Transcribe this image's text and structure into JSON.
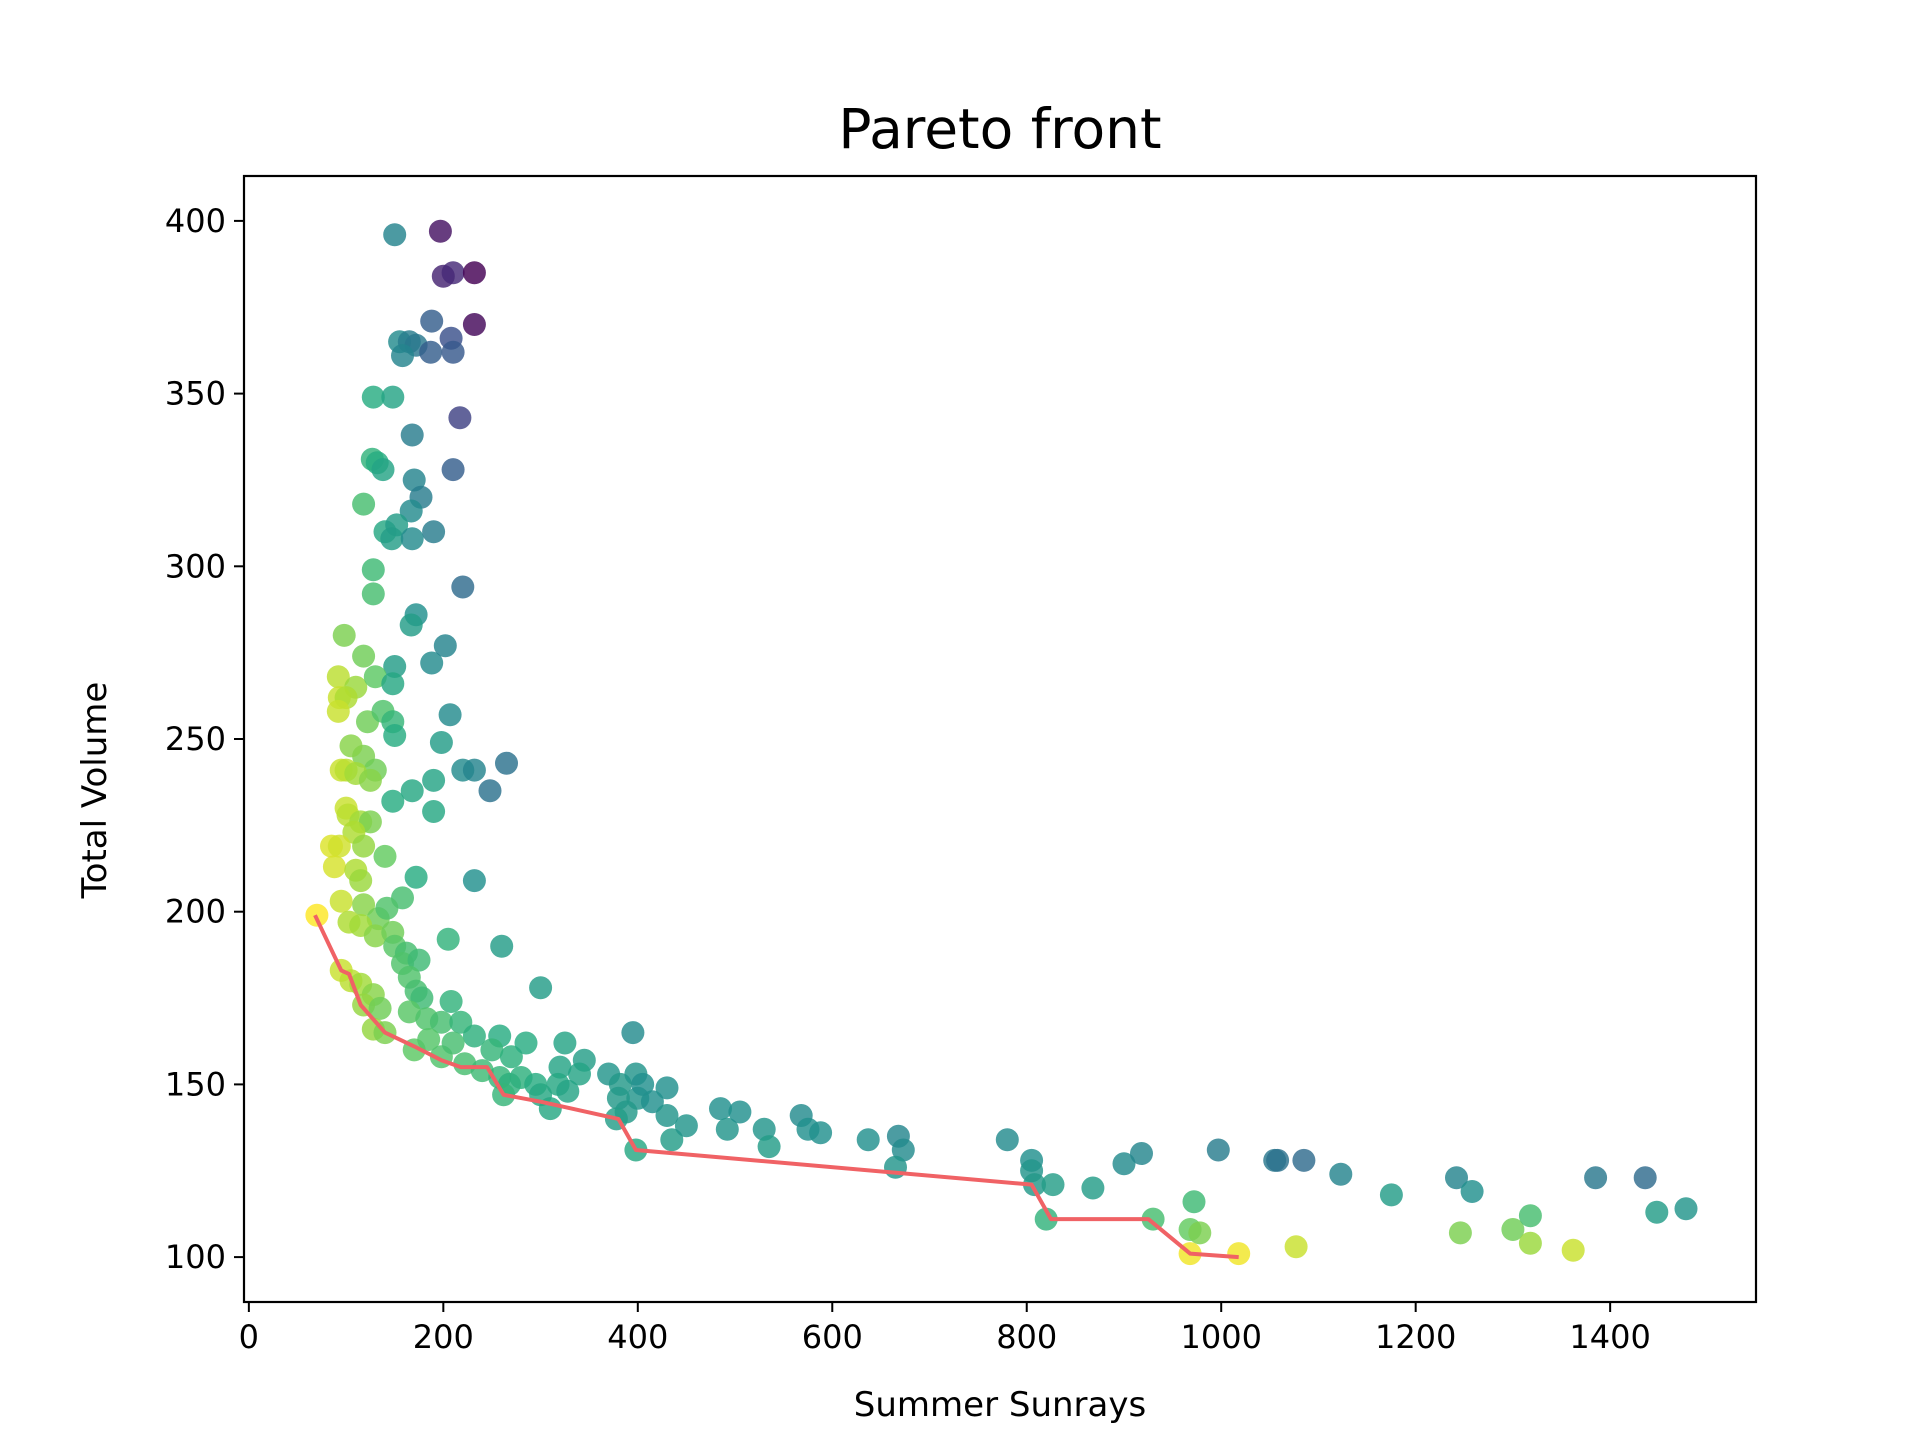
{
  "chart_data": {
    "type": "scatter",
    "title": "Pareto front",
    "xlabel": "Summer Sunrays",
    "ylabel": "Total Volume",
    "xlim": [
      -5,
      1550
    ],
    "ylim": [
      87,
      413
    ],
    "xticks": [
      0,
      200,
      400,
      600,
      800,
      1000,
      1200,
      1400
    ],
    "yticks": [
      100,
      150,
      200,
      250,
      300,
      350,
      400
    ],
    "grid": false,
    "legend": "none",
    "colormap": "viridis",
    "colors": {
      "frontier": "#f06265",
      "axes": "#000000"
    },
    "points": [
      [
        197,
        397,
        0.05
      ],
      [
        150,
        396,
        0.45
      ],
      [
        200,
        384,
        0.1
      ],
      [
        210,
        385,
        0.12
      ],
      [
        232,
        385,
        0.0
      ],
      [
        232,
        370,
        0.02
      ],
      [
        188,
        371,
        0.3
      ],
      [
        208,
        366,
        0.25
      ],
      [
        155,
        365,
        0.48
      ],
      [
        165,
        365,
        0.42
      ],
      [
        172,
        364,
        0.4
      ],
      [
        158,
        361,
        0.45
      ],
      [
        187,
        362,
        0.3
      ],
      [
        210,
        362,
        0.28
      ],
      [
        128,
        349,
        0.62
      ],
      [
        148,
        349,
        0.58
      ],
      [
        217,
        343,
        0.2
      ],
      [
        168,
        338,
        0.42
      ],
      [
        210,
        328,
        0.3
      ],
      [
        127,
        331,
        0.65
      ],
      [
        132,
        330,
        0.62
      ],
      [
        138,
        328,
        0.58
      ],
      [
        170,
        325,
        0.45
      ],
      [
        177,
        320,
        0.42
      ],
      [
        167,
        316,
        0.48
      ],
      [
        118,
        318,
        0.7
      ],
      [
        140,
        310,
        0.6
      ],
      [
        147,
        308,
        0.56
      ],
      [
        152,
        312,
        0.55
      ],
      [
        168,
        308,
        0.48
      ],
      [
        190,
        310,
        0.42
      ],
      [
        128,
        299,
        0.68
      ],
      [
        128,
        292,
        0.7
      ],
      [
        220,
        294,
        0.35
      ],
      [
        172,
        286,
        0.5
      ],
      [
        167,
        283,
        0.55
      ],
      [
        98,
        280,
        0.8
      ],
      [
        118,
        274,
        0.78
      ],
      [
        150,
        271,
        0.55
      ],
      [
        188,
        272,
        0.48
      ],
      [
        202,
        277,
        0.45
      ],
      [
        92,
        268,
        0.9
      ],
      [
        110,
        265,
        0.85
      ],
      [
        130,
        268,
        0.75
      ],
      [
        148,
        266,
        0.6
      ],
      [
        93,
        262,
        0.92
      ],
      [
        100,
        262,
        0.88
      ],
      [
        122,
        255,
        0.78
      ],
      [
        138,
        258,
        0.72
      ],
      [
        148,
        255,
        0.66
      ],
      [
        150,
        251,
        0.62
      ],
      [
        207,
        257,
        0.48
      ],
      [
        92,
        258,
        0.92
      ],
      [
        118,
        245,
        0.8
      ],
      [
        105,
        248,
        0.82
      ],
      [
        130,
        241,
        0.78
      ],
      [
        198,
        249,
        0.55
      ],
      [
        220,
        241,
        0.48
      ],
      [
        232,
        241,
        0.45
      ],
      [
        265,
        243,
        0.38
      ],
      [
        248,
        235,
        0.38
      ],
      [
        95,
        241,
        0.92
      ],
      [
        100,
        241,
        0.9
      ],
      [
        110,
        240,
        0.86
      ],
      [
        125,
        238,
        0.82
      ],
      [
        148,
        232,
        0.62
      ],
      [
        168,
        235,
        0.6
      ],
      [
        190,
        238,
        0.58
      ],
      [
        190,
        229,
        0.6
      ],
      [
        100,
        230,
        0.92
      ],
      [
        102,
        228,
        0.9
      ],
      [
        115,
        226,
        0.86
      ],
      [
        125,
        226,
        0.8
      ],
      [
        108,
        223,
        0.88
      ],
      [
        85,
        219,
        0.95
      ],
      [
        93,
        219,
        0.93
      ],
      [
        118,
        219,
        0.84
      ],
      [
        88,
        213,
        0.94
      ],
      [
        110,
        212,
        0.88
      ],
      [
        115,
        209,
        0.85
      ],
      [
        140,
        216,
        0.76
      ],
      [
        172,
        210,
        0.62
      ],
      [
        232,
        209,
        0.5
      ],
      [
        95,
        203,
        0.92
      ],
      [
        118,
        202,
        0.82
      ],
      [
        133,
        198,
        0.78
      ],
      [
        158,
        204,
        0.7
      ],
      [
        142,
        201,
        0.72
      ],
      [
        70,
        199,
        1.0
      ],
      [
        103,
        197,
        0.88
      ],
      [
        115,
        196,
        0.86
      ],
      [
        130,
        193,
        0.82
      ],
      [
        148,
        194,
        0.78
      ],
      [
        205,
        192,
        0.65
      ],
      [
        150,
        190,
        0.74
      ],
      [
        162,
        188,
        0.7
      ],
      [
        158,
        185,
        0.72
      ],
      [
        175,
        186,
        0.68
      ],
      [
        260,
        190,
        0.55
      ],
      [
        95,
        183,
        0.92
      ],
      [
        105,
        180,
        0.9
      ],
      [
        115,
        179,
        0.86
      ],
      [
        165,
        181,
        0.72
      ],
      [
        172,
        177,
        0.7
      ],
      [
        178,
        175,
        0.68
      ],
      [
        128,
        176,
        0.82
      ],
      [
        118,
        173,
        0.84
      ],
      [
        135,
        172,
        0.78
      ],
      [
        300,
        178,
        0.55
      ],
      [
        208,
        174,
        0.65
      ],
      [
        165,
        171,
        0.74
      ],
      [
        183,
        169,
        0.72
      ],
      [
        198,
        168,
        0.7
      ],
      [
        218,
        168,
        0.66
      ],
      [
        232,
        164,
        0.64
      ],
      [
        258,
        164,
        0.62
      ],
      [
        128,
        166,
        0.84
      ],
      [
        140,
        165,
        0.8
      ],
      [
        170,
        160,
        0.75
      ],
      [
        185,
        163,
        0.73
      ],
      [
        198,
        158,
        0.72
      ],
      [
        210,
        162,
        0.7
      ],
      [
        250,
        160,
        0.66
      ],
      [
        270,
        158,
        0.64
      ],
      [
        285,
        162,
        0.62
      ],
      [
        222,
        156,
        0.7
      ],
      [
        240,
        154,
        0.68
      ],
      [
        258,
        152,
        0.66
      ],
      [
        268,
        150,
        0.64
      ],
      [
        280,
        152,
        0.64
      ],
      [
        295,
        150,
        0.62
      ],
      [
        262,
        147,
        0.66
      ],
      [
        300,
        147,
        0.6
      ],
      [
        325,
        162,
        0.58
      ],
      [
        320,
        155,
        0.58
      ],
      [
        345,
        157,
        0.56
      ],
      [
        340,
        153,
        0.58
      ],
      [
        310,
        143,
        0.6
      ],
      [
        318,
        150,
        0.6
      ],
      [
        328,
        148,
        0.58
      ],
      [
        370,
        153,
        0.52
      ],
      [
        382,
        150,
        0.54
      ],
      [
        398,
        153,
        0.52
      ],
      [
        400,
        146,
        0.52
      ],
      [
        395,
        165,
        0.48
      ],
      [
        380,
        146,
        0.54
      ],
      [
        388,
        142,
        0.54
      ],
      [
        405,
        150,
        0.5
      ],
      [
        415,
        145,
        0.5
      ],
      [
        430,
        149,
        0.5
      ],
      [
        378,
        140,
        0.56
      ],
      [
        430,
        141,
        0.52
      ],
      [
        435,
        134,
        0.55
      ],
      [
        398,
        131,
        0.6
      ],
      [
        450,
        138,
        0.52
      ],
      [
        485,
        143,
        0.5
      ],
      [
        492,
        137,
        0.52
      ],
      [
        505,
        142,
        0.5
      ],
      [
        530,
        137,
        0.52
      ],
      [
        535,
        132,
        0.55
      ],
      [
        568,
        141,
        0.48
      ],
      [
        575,
        137,
        0.5
      ],
      [
        588,
        136,
        0.5
      ],
      [
        637,
        134,
        0.5
      ],
      [
        668,
        135,
        0.46
      ],
      [
        673,
        131,
        0.48
      ],
      [
        665,
        126,
        0.52
      ],
      [
        780,
        134,
        0.48
      ],
      [
        805,
        128,
        0.5
      ],
      [
        805,
        125,
        0.52
      ],
      [
        808,
        121,
        0.54
      ],
      [
        827,
        121,
        0.56
      ],
      [
        820,
        111,
        0.65
      ],
      [
        868,
        120,
        0.55
      ],
      [
        900,
        127,
        0.48
      ],
      [
        918,
        130,
        0.46
      ],
      [
        930,
        111,
        0.7
      ],
      [
        972,
        116,
        0.68
      ],
      [
        968,
        108,
        0.76
      ],
      [
        978,
        107,
        0.8
      ],
      [
        968,
        101,
        0.98
      ],
      [
        1018,
        101,
        0.98
      ],
      [
        997,
        131,
        0.42
      ],
      [
        1055,
        128,
        0.4
      ],
      [
        1058,
        128,
        0.38
      ],
      [
        1085,
        128,
        0.35
      ],
      [
        1077,
        103,
        0.92
      ],
      [
        1123,
        124,
        0.45
      ],
      [
        1175,
        118,
        0.55
      ],
      [
        1242,
        123,
        0.45
      ],
      [
        1258,
        119,
        0.5
      ],
      [
        1246,
        107,
        0.8
      ],
      [
        1300,
        108,
        0.78
      ],
      [
        1318,
        112,
        0.7
      ],
      [
        1318,
        104,
        0.85
      ],
      [
        1362,
        102,
        0.92
      ],
      [
        1385,
        123,
        0.4
      ],
      [
        1436,
        123,
        0.35
      ],
      [
        1448,
        113,
        0.55
      ],
      [
        1478,
        114,
        0.52
      ]
    ],
    "frontier": [
      [
        68,
        199
      ],
      [
        95,
        183
      ],
      [
        103,
        182
      ],
      [
        115,
        173
      ],
      [
        140,
        165
      ],
      [
        170,
        161
      ],
      [
        198,
        157
      ],
      [
        218,
        155
      ],
      [
        245,
        155
      ],
      [
        262,
        147
      ],
      [
        300,
        145
      ],
      [
        380,
        140
      ],
      [
        398,
        131
      ],
      [
        805,
        121
      ],
      [
        825,
        111
      ],
      [
        925,
        111
      ],
      [
        968,
        101
      ],
      [
        1018,
        100
      ]
    ]
  }
}
